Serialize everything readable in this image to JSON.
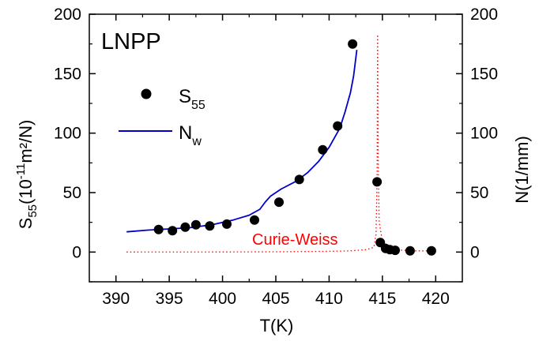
{
  "chart_data": {
    "type": "scatter",
    "annotations": [
      {
        "text": "LNPP"
      },
      {
        "text": "Curie-Weiss",
        "color": "#ff0000"
      }
    ],
    "xlabel": "T(K)",
    "ylabel": {
      "main": "S",
      "sub": "55",
      "pre_sup": "(10",
      "sup": "-11",
      "post": "m²/N)"
    },
    "y2label": "N(1/mm)",
    "xlim": [
      387.5,
      422.5
    ],
    "ylim": [
      -25,
      200
    ],
    "y2lim": [
      -25,
      200
    ],
    "xticks": [
      "390",
      "395",
      "400",
      "405",
      "410",
      "415",
      "420"
    ],
    "yticks": [
      "0",
      "50",
      "100",
      "150",
      "200"
    ],
    "y2ticks": [
      "0",
      "50",
      "100",
      "150",
      "200"
    ],
    "grid": false,
    "legend": {
      "placement": "upper-left",
      "entries": [
        {
          "main": "S",
          "sub": "55"
        },
        {
          "main": "N",
          "sub": "w"
        }
      ]
    },
    "series": [
      {
        "type": "scatter",
        "color": "#000000",
        "points": [
          [
            394.0,
            19
          ],
          [
            395.3,
            18
          ],
          [
            396.5,
            21
          ],
          [
            397.5,
            23
          ],
          [
            398.8,
            22
          ],
          [
            400.4,
            23.5
          ],
          [
            403.0,
            27
          ],
          [
            405.3,
            42
          ],
          [
            407.2,
            61
          ],
          [
            409.4,
            86
          ],
          [
            410.8,
            106
          ],
          [
            412.2,
            175
          ],
          [
            414.5,
            59
          ],
          [
            414.8,
            8
          ],
          [
            415.3,
            3
          ],
          [
            415.7,
            2
          ],
          [
            416.2,
            1.5
          ],
          [
            417.6,
            1
          ],
          [
            419.6,
            1
          ]
        ]
      },
      {
        "type": "line",
        "color": "#0000cc",
        "points": [
          [
            391.0,
            17
          ],
          [
            393.0,
            18.5
          ],
          [
            395.0,
            19.5
          ],
          [
            397.0,
            20.5
          ],
          [
            399.0,
            23
          ],
          [
            401.0,
            27
          ],
          [
            402.5,
            31
          ],
          [
            403.5,
            36
          ],
          [
            404.0,
            42
          ],
          [
            404.5,
            47
          ],
          [
            405.5,
            53
          ],
          [
            407.0,
            60
          ],
          [
            408.0,
            67
          ],
          [
            409.0,
            76
          ],
          [
            410.0,
            88
          ],
          [
            411.0,
            104
          ],
          [
            411.5,
            118
          ],
          [
            412.0,
            134
          ],
          [
            412.3,
            148
          ],
          [
            412.6,
            170
          ]
        ]
      },
      {
        "type": "line",
        "style": "dotted",
        "color": "#ff0000",
        "points": [
          [
            391.0,
            0
          ],
          [
            400.0,
            0.1
          ],
          [
            405.0,
            0.2
          ],
          [
            410.0,
            0.6
          ],
          [
            412.0,
            1
          ],
          [
            413.5,
            2
          ],
          [
            414.2,
            4
          ],
          [
            414.4,
            15
          ],
          [
            414.5,
            60
          ],
          [
            414.55,
            183
          ],
          [
            414.6,
            80
          ],
          [
            414.7,
            25
          ],
          [
            415.0,
            9
          ],
          [
            416.0,
            2
          ],
          [
            418.0,
            1
          ],
          [
            420.0,
            1
          ]
        ]
      }
    ]
  }
}
